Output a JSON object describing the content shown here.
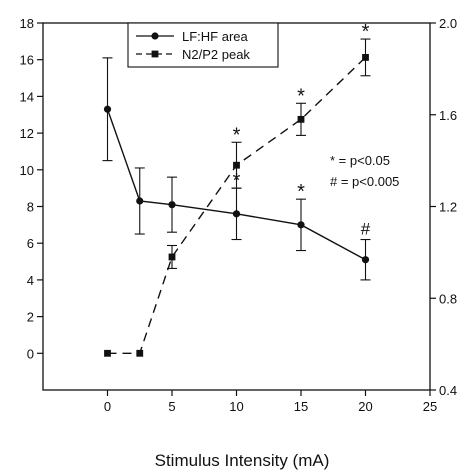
{
  "chart_data": {
    "type": "line",
    "xlabel": "Stimulus Intensity (mA)",
    "xlim": [
      -5,
      25
    ],
    "x_ticks": [
      "0",
      "5",
      "10",
      "15",
      "20",
      "25"
    ],
    "y_left": {
      "lim": [
        -2,
        18
      ],
      "ticks": [
        "0",
        "2",
        "4",
        "6",
        "8",
        "10",
        "12",
        "14",
        "16",
        "18"
      ]
    },
    "y_right": {
      "lim": [
        0.4,
        2.0
      ],
      "ticks": [
        "0.4",
        "0.8",
        "1.2",
        "1.6",
        "2.0"
      ]
    },
    "grid": false,
    "legend_position": "top-left",
    "series": [
      {
        "name": "LF:HF area",
        "axis": "left",
        "marker": "circle",
        "line": "solid",
        "x": [
          0,
          2.5,
          5,
          10,
          15,
          20
        ],
        "y": [
          13.3,
          8.3,
          8.1,
          7.6,
          7.0,
          5.1
        ],
        "err": [
          2.8,
          1.8,
          1.5,
          1.4,
          1.4,
          1.1
        ]
      },
      {
        "name": "N2/P2 peak",
        "axis": "right",
        "marker": "square",
        "line": "dashed",
        "x": [
          0,
          2.5,
          5,
          10,
          15,
          20
        ],
        "y": [
          0.56,
          0.56,
          0.98,
          1.38,
          1.58,
          1.85
        ],
        "err": [
          0,
          0,
          0.05,
          0.1,
          0.07,
          0.08
        ]
      }
    ],
    "significance_marks": [
      {
        "symbol": "*",
        "x": 10,
        "series": "N2/P2 peak"
      },
      {
        "symbol": "*",
        "x": 10,
        "series": "LF:HF area"
      },
      {
        "symbol": "*",
        "x": 15,
        "series": "N2/P2 peak"
      },
      {
        "symbol": "*",
        "x": 15,
        "series": "LF:HF area"
      },
      {
        "symbol": "*",
        "x": 20,
        "series": "N2/P2 peak"
      },
      {
        "symbol": "#",
        "x": 20,
        "series": "LF:HF area"
      }
    ],
    "annotations": [
      "* = p<0.05",
      "# = p<0.005"
    ]
  }
}
